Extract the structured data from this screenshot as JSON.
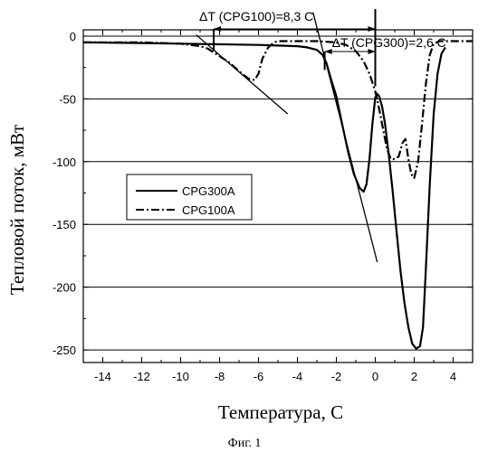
{
  "figure": {
    "caption": "Фиг. 1"
  },
  "chart_data": {
    "type": "line",
    "xlabel": "Температура, С",
    "ylabel": "Тепловой поток, мВт",
    "xlim": [
      -15,
      5
    ],
    "ylim": [
      -260,
      5
    ],
    "x_ticks": [
      -14,
      -12,
      -10,
      -8,
      -6,
      -4,
      -2,
      0,
      2,
      4
    ],
    "y_ticks": [
      0,
      -50,
      -100,
      -150,
      -200,
      -250
    ],
    "grid": "horizontal",
    "legend": {
      "placement": "center-left",
      "entries": [
        "CPG300A",
        "CPG100A"
      ]
    },
    "series": [
      {
        "name": "CPG300A",
        "style": "solid",
        "color": "#000000",
        "x": [
          -15,
          -12,
          -10,
          -8,
          -6,
          -5,
          -4,
          -3.5,
          -3,
          -2.7,
          -2.5,
          -2.3,
          -2,
          -1.7,
          -1.4,
          -1.1,
          -0.8,
          -0.6,
          -0.45,
          -0.3,
          -0.15,
          0,
          0.1,
          0.2,
          0.35,
          0.5,
          0.7,
          0.9,
          1.1,
          1.3,
          1.5,
          1.7,
          1.9,
          2.1,
          2.3,
          2.45,
          2.6,
          2.8,
          3.0,
          3.2,
          3.4,
          3.6
        ],
        "y": [
          -5,
          -5.5,
          -6,
          -6.5,
          -7,
          -7.5,
          -8,
          -9,
          -11,
          -15,
          -22,
          -33,
          -48,
          -70,
          -92,
          -110,
          -121,
          -124,
          -118,
          -98,
          -70,
          -49,
          -46,
          -48,
          -56,
          -70,
          -95,
          -125,
          -157,
          -188,
          -213,
          -232,
          -245,
          -249,
          -247,
          -232,
          -185,
          -118,
          -62,
          -30,
          -14,
          -9
        ]
      },
      {
        "name": "CPG100A",
        "style": "dash-dot",
        "color": "#000000",
        "x": [
          -15,
          -12,
          -10,
          -9,
          -8.6,
          -8.3,
          -8,
          -7.5,
          -7,
          -6.5,
          -6.2,
          -6.0,
          -5.8,
          -5.5,
          -5.2,
          -5.0,
          -4.5,
          -4,
          -3,
          -2,
          -1.5,
          -1,
          -0.6,
          -0.3,
          0,
          0.2,
          0.4,
          0.6,
          0.8,
          1.0,
          1.2,
          1.4,
          1.55,
          1.7,
          1.85,
          2.0,
          2.2,
          2.4,
          2.6,
          2.8,
          3.0,
          3.3,
          4,
          5
        ],
        "y": [
          -5,
          -5,
          -6,
          -8,
          -10,
          -13,
          -16,
          -21,
          -28,
          -34,
          -35,
          -30,
          -18,
          -9,
          -5,
          -4,
          -4,
          -4,
          -4,
          -5,
          -7,
          -12,
          -20,
          -30,
          -44,
          -58,
          -74,
          -90,
          -98,
          -98,
          -96,
          -85,
          -82,
          -98,
          -110,
          -113,
          -100,
          -70,
          -38,
          -15,
          -6,
          -4,
          -4,
          -4
        ]
      }
    ],
    "annotations": [
      {
        "text": "ΔT (CPG100)=8,3 С",
        "x_from": -8.3,
        "x_to": 0
      },
      {
        "text": "ΔT (CPG300)=2,6 С",
        "x_from": -2.6,
        "x_to": 0
      }
    ],
    "tangent_lines": [
      {
        "from": [
          -9.2,
          1
        ],
        "to": [
          -4.5,
          -62
        ]
      },
      {
        "from": [
          -3.2,
          19
        ],
        "to": [
          0.1,
          -180
        ]
      }
    ]
  }
}
